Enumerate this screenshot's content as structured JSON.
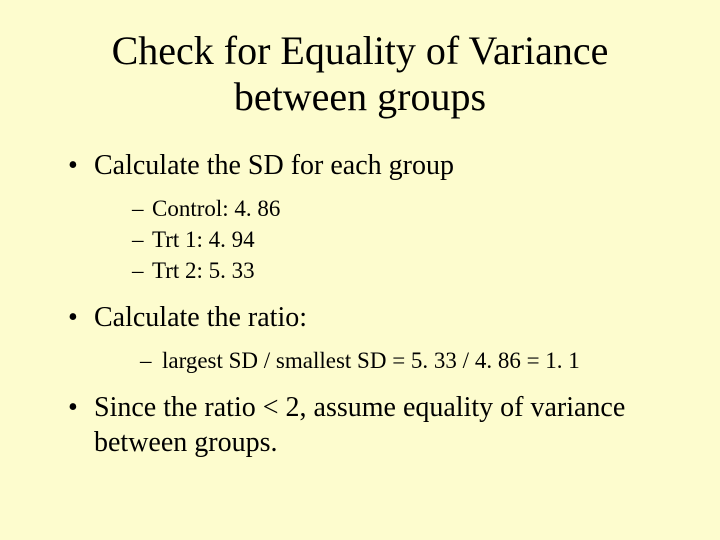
{
  "slide": {
    "background_color": "#fdfcce",
    "text_color": "#000000",
    "font_family": "Times New Roman",
    "title": "Check for Equality of Variance between groups",
    "title_fontsize": 40,
    "body_fontsize": 28,
    "sub_fontsize": 23,
    "bullets": [
      {
        "text": "Calculate the SD for each group",
        "subs": [
          {
            "text": "Control: 4. 86"
          },
          {
            "text": "Trt 1: 4. 94"
          },
          {
            "text": "Trt 2: 5. 33"
          }
        ]
      },
      {
        "text": "Calculate the ratio:",
        "subs": [
          {
            "text": "largest SD / smallest SD = 5. 33 / 4. 86 = 1. 1",
            "indent": true
          }
        ]
      },
      {
        "text": "Since the ratio < 2, assume equality of variance between groups.",
        "subs": []
      }
    ]
  }
}
